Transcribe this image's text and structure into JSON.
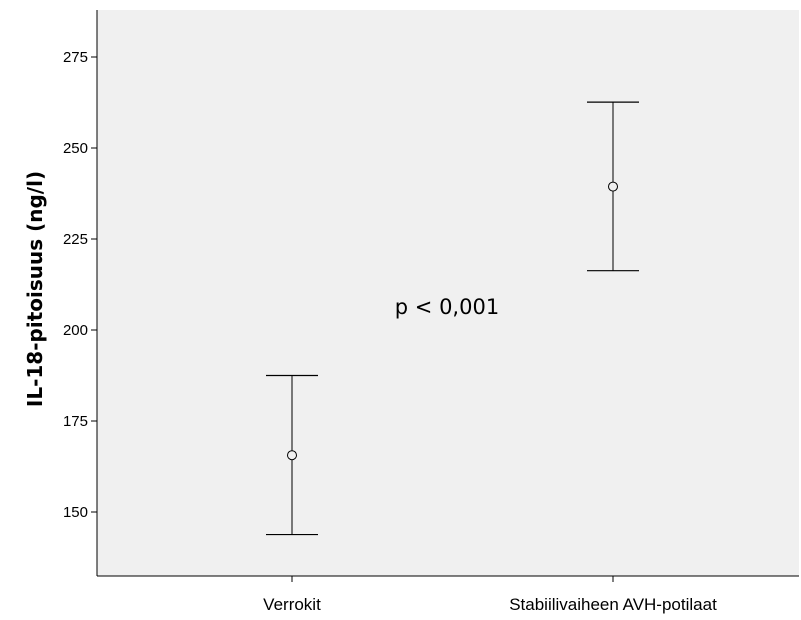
{
  "chart_data": {
    "type": "errorbar",
    "title": "",
    "xlabel": "",
    "ylabel": "IL-18-pitoisuus (ng/l)",
    "categories": [
      "Verrokit",
      "Stabiilivaiheen AVH-potilaat"
    ],
    "series": [
      {
        "values": [
          165.6,
          239.4
        ],
        "lower": [
          143.8,
          216.3
        ],
        "upper": [
          187.5,
          262.6
        ]
      }
    ],
    "ylim": [
      133,
      300
    ],
    "yticks": [
      150,
      175,
      200,
      225,
      250,
      275
    ],
    "grid": false,
    "annotations": [
      {
        "text": "p < 0,001"
      }
    ],
    "colors": {
      "plot_background": "#f0f0f0",
      "line": "#000000"
    }
  }
}
